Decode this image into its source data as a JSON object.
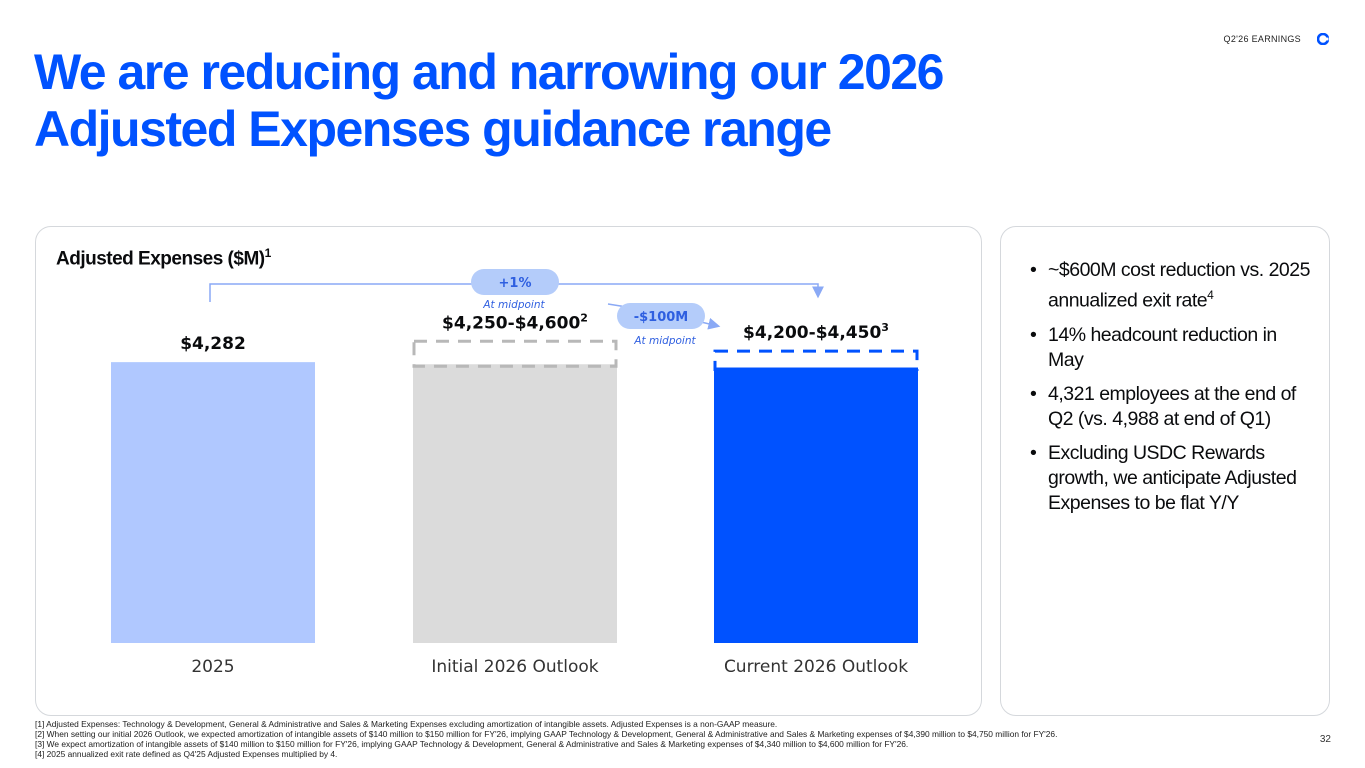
{
  "header": {
    "tag": "Q2'26 EARNINGS"
  },
  "title": {
    "line1": "We are reducing and narrowing our 2026",
    "line2": "Adjusted Expenses guidance range"
  },
  "chart_title": {
    "text": "Adjusted Expenses ($M)",
    "sup": "1"
  },
  "colors": {
    "brand": "#0052ff",
    "bar_2025": "#b0c8ff",
    "bar_initial": "#dbdbdb",
    "bar_current": "#0052ff",
    "pill": "#b4ccfa",
    "pill_text": "#2f5fe0",
    "connector": "#8aa9f5"
  },
  "chart_data": {
    "type": "bar",
    "categories": [
      "2025",
      "Initial 2026 Outlook",
      "Current 2026 Outlook"
    ],
    "values": [
      4282,
      4250,
      4200
    ],
    "range_high": [
      null,
      4600,
      4450
    ],
    "value_labels": [
      {
        "text": "$4,282",
        "sup": ""
      },
      {
        "text": "$4,250-$4,600",
        "sup": "2"
      },
      {
        "text": "$4,200-$4,450",
        "sup": "3"
      }
    ],
    "ylim": [
      0,
      4650
    ],
    "annotations": [
      {
        "label": "+1%",
        "sublabel": "At midpoint",
        "from": "2025",
        "to": "Current 2026 Outlook"
      },
      {
        "label": "-$100M",
        "sublabel": "At midpoint",
        "from": "Initial 2026 Outlook",
        "to": "Current 2026 Outlook"
      }
    ]
  },
  "bullets": [
    {
      "text": "~$600M cost reduction vs. 2025 annualized exit rate",
      "sup": "4"
    },
    {
      "text": "14% headcount reduction in May",
      "sup": ""
    },
    {
      "text": "4,321 employees at the end of Q2 (vs. 4,988 at end of Q1)",
      "sup": ""
    },
    {
      "text": "Excluding USDC Rewards growth, we anticipate Adjusted Expenses to be flat Y/Y",
      "sup": ""
    }
  ],
  "footnotes": [
    "[1] Adjusted Expenses: Technology & Development, General & Administrative and Sales & Marketing Expenses excluding amortization of intangible assets. Adjusted Expenses is a non-GAAP measure.",
    "[2] When setting our initial 2026 Outlook, we expected amortization of intangible assets of $140 million to $150 million for FY'26, implying GAAP Technology & Development, General & Administrative and Sales & Marketing expenses of $4,390 million  to $4,750 million  for FY'26.",
    "[3] We expect amortization of intangible assets of $140 million to $150 million for FY'26, implying GAAP Technology & Development, General & Administrative and Sales & Marketing expenses of $4,340 million  to $4,600 million  for FY'26.",
    "[4] 2025 annualized exit rate defined as Q4'25 Adjusted Expenses multiplied by 4."
  ],
  "page_number": "32"
}
